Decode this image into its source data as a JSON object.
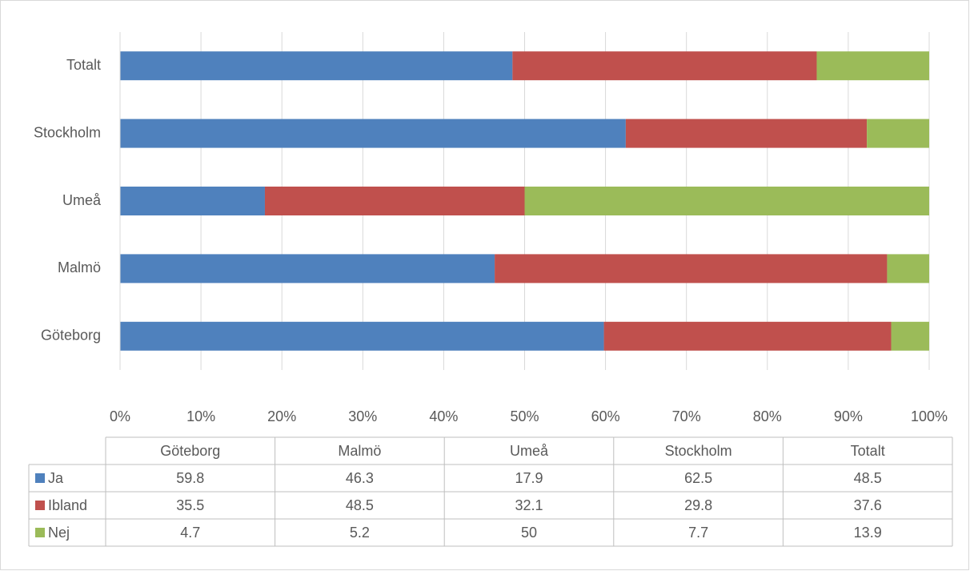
{
  "chart_data": {
    "type": "bar",
    "orientation": "horizontal",
    "stacked": true,
    "grid": true,
    "data_table": true,
    "categories": [
      "Göteborg",
      "Malmö",
      "Umeå",
      "Stockholm",
      "Totalt"
    ],
    "series": [
      {
        "name": "Ja",
        "color": "#4f81bd",
        "values": [
          59.8,
          46.3,
          17.9,
          62.5,
          48.5
        ]
      },
      {
        "name": "Ibland",
        "color": "#c0504d",
        "values": [
          35.5,
          48.5,
          32.1,
          29.8,
          37.6
        ]
      },
      {
        "name": "Nej",
        "color": "#9bbb59",
        "values": [
          4.7,
          5.2,
          50,
          7.7,
          13.9
        ]
      }
    ],
    "xlim": [
      0,
      100
    ],
    "xticks": [
      {
        "value": 0,
        "label": "0%"
      },
      {
        "value": 10,
        "label": "10%"
      },
      {
        "value": 20,
        "label": "20%"
      },
      {
        "value": 30,
        "label": "30%"
      },
      {
        "value": 40,
        "label": "40%"
      },
      {
        "value": 50,
        "label": "50%"
      },
      {
        "value": 60,
        "label": "60%"
      },
      {
        "value": 70,
        "label": "70%"
      },
      {
        "value": 80,
        "label": "80%"
      },
      {
        "value": 90,
        "label": "90%"
      },
      {
        "value": 100,
        "label": "100%"
      }
    ]
  }
}
